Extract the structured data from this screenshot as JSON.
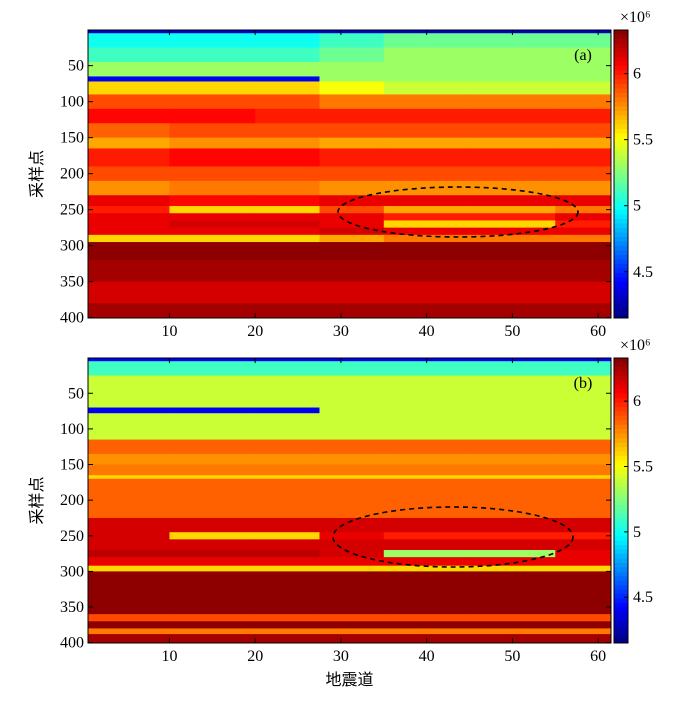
{
  "chart_data": [
    {
      "type": "heatmap",
      "label": "(a)",
      "ylabel": "采样点",
      "colorbar_label": "×10⁶",
      "colormap": "jet",
      "y_reversed": true,
      "xlim": [
        0.5,
        61.5
      ],
      "ylim": [
        0.5,
        400.5
      ],
      "xticks": [
        10,
        20,
        30,
        40,
        50,
        60
      ],
      "yticks": [
        50,
        100,
        150,
        200,
        250,
        300,
        350,
        400
      ],
      "clim": [
        4.15,
        6.33
      ],
      "cticks": [
        4.5,
        5,
        5.5,
        6
      ],
      "xbins": [
        0.5,
        10,
        20,
        27.5,
        35,
        45,
        55,
        61.5
      ],
      "ybins": [
        0.5,
        5,
        25,
        45,
        65,
        72,
        90,
        110,
        130,
        150,
        165,
        190,
        210,
        230,
        245,
        255,
        265,
        275,
        285,
        295,
        320,
        350,
        380,
        400.5
      ],
      "values": [
        [
          4.3,
          4.3,
          4.3,
          4.3,
          4.3,
          4.3,
          4.3
        ],
        [
          5.0,
          5.0,
          5.0,
          5.1,
          5.2,
          5.2,
          5.2
        ],
        [
          5.1,
          5.1,
          5.1,
          5.2,
          5.3,
          5.3,
          5.3
        ],
        [
          5.3,
          5.3,
          5.3,
          5.3,
          5.3,
          5.3,
          5.3
        ],
        [
          4.4,
          4.4,
          4.4,
          5.3,
          5.3,
          5.3,
          5.3
        ],
        [
          5.6,
          5.6,
          5.6,
          5.5,
          5.4,
          5.4,
          5.4
        ],
        [
          5.9,
          5.9,
          5.9,
          5.8,
          5.8,
          5.8,
          5.8
        ],
        [
          6.05,
          6.05,
          6.0,
          6.0,
          6.0,
          6.0,
          6.0
        ],
        [
          5.85,
          5.9,
          5.9,
          5.9,
          5.9,
          5.9,
          5.9
        ],
        [
          5.7,
          5.75,
          5.75,
          5.7,
          5.7,
          5.7,
          5.7
        ],
        [
          6.0,
          6.05,
          6.05,
          6.0,
          6.0,
          6.0,
          6.0
        ],
        [
          5.9,
          5.9,
          5.9,
          5.9,
          5.9,
          5.9,
          5.9
        ],
        [
          5.75,
          5.8,
          5.8,
          5.75,
          5.75,
          5.75,
          5.75
        ],
        [
          6.1,
          6.05,
          6.05,
          6.1,
          6.1,
          6.1,
          6.1
        ],
        [
          6.0,
          5.6,
          5.6,
          5.9,
          5.7,
          5.7,
          5.8
        ],
        [
          6.1,
          6.1,
          6.1,
          6.1,
          6.0,
          6.0,
          6.1
        ],
        [
          6.1,
          6.15,
          6.15,
          6.1,
          5.6,
          5.6,
          6.0
        ],
        [
          6.1,
          6.1,
          6.1,
          6.15,
          6.1,
          6.1,
          6.1
        ],
        [
          5.6,
          5.6,
          5.6,
          5.7,
          5.8,
          5.8,
          5.8
        ],
        [
          6.3,
          6.3,
          6.3,
          6.3,
          6.3,
          6.3,
          6.3
        ],
        [
          6.25,
          6.25,
          6.25,
          6.25,
          6.25,
          6.25,
          6.25
        ],
        [
          6.15,
          6.15,
          6.15,
          6.15,
          6.15,
          6.15,
          6.15
        ],
        [
          6.25,
          6.25,
          6.25,
          6.25,
          6.25,
          6.25,
          6.25
        ]
      ]
    },
    {
      "type": "heatmap",
      "label": "(b)",
      "ylabel": "采样点",
      "xlabel": "地震道",
      "colorbar_label": "×10⁶",
      "colormap": "jet",
      "y_reversed": true,
      "xlim": [
        0.5,
        61.5
      ],
      "ylim": [
        0.5,
        400.5
      ],
      "xticks": [
        10,
        20,
        30,
        40,
        50,
        60
      ],
      "yticks": [
        50,
        100,
        150,
        200,
        250,
        300,
        350,
        400
      ],
      "clim": [
        4.15,
        6.33
      ],
      "cticks": [
        4.5,
        5,
        5.5,
        6
      ],
      "xbins": [
        0.5,
        10,
        20,
        27.5,
        35,
        45,
        55,
        61.5
      ],
      "ybins": [
        0.5,
        5,
        25,
        70,
        78,
        115,
        135,
        150,
        165,
        170,
        225,
        245,
        255,
        270,
        280,
        292,
        300,
        360,
        370,
        380,
        388,
        400.5
      ],
      "values": [
        [
          4.4,
          4.4,
          4.4,
          4.4,
          4.4,
          4.4,
          4.4
        ],
        [
          5.1,
          5.1,
          5.1,
          5.1,
          5.1,
          5.1,
          5.1
        ],
        [
          5.4,
          5.4,
          5.4,
          5.4,
          5.4,
          5.4,
          5.4
        ],
        [
          4.4,
          4.4,
          4.4,
          5.4,
          5.4,
          5.4,
          5.4
        ],
        [
          5.4,
          5.4,
          5.4,
          5.4,
          5.4,
          5.4,
          5.4
        ],
        [
          5.85,
          5.85,
          5.85,
          5.85,
          5.85,
          5.85,
          5.85
        ],
        [
          5.75,
          5.75,
          5.75,
          5.75,
          5.75,
          5.75,
          5.75
        ],
        [
          5.8,
          5.8,
          5.8,
          5.8,
          5.8,
          5.8,
          5.8
        ],
        [
          5.6,
          5.6,
          5.6,
          5.6,
          5.6,
          5.6,
          5.6
        ],
        [
          5.85,
          5.85,
          5.85,
          5.85,
          5.85,
          5.85,
          5.85
        ],
        [
          6.15,
          6.15,
          6.15,
          6.15,
          6.15,
          6.15,
          6.15
        ],
        [
          6.15,
          5.6,
          5.6,
          6.1,
          6.0,
          6.0,
          6.0
        ],
        [
          6.15,
          6.15,
          6.15,
          6.15,
          6.15,
          6.15,
          6.15
        ],
        [
          6.2,
          6.2,
          6.2,
          6.15,
          5.3,
          5.3,
          6.1
        ],
        [
          6.1,
          6.1,
          6.1,
          6.1,
          6.1,
          6.1,
          6.1
        ],
        [
          5.6,
          5.6,
          5.6,
          5.6,
          5.6,
          5.6,
          5.6
        ],
        [
          6.3,
          6.3,
          6.3,
          6.3,
          6.3,
          6.3,
          6.3
        ],
        [
          5.9,
          5.9,
          5.9,
          5.9,
          5.9,
          5.9,
          5.9
        ],
        [
          6.3,
          6.3,
          6.3,
          6.3,
          6.3,
          6.3,
          6.3
        ],
        [
          5.8,
          5.8,
          5.8,
          5.8,
          5.8,
          5.8,
          5.8
        ],
        [
          6.25,
          6.25,
          6.25,
          6.25,
          6.25,
          6.25,
          6.25
        ]
      ]
    }
  ]
}
